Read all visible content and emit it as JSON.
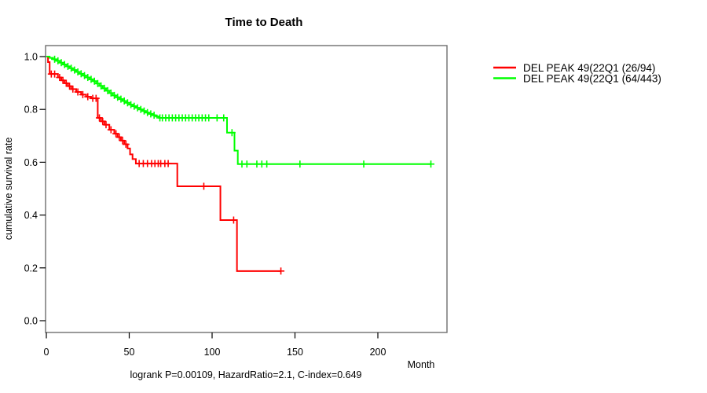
{
  "chart_data": {
    "type": "line",
    "curve_style": "kaplan-meier-step",
    "title": "Time to Death",
    "xlabel": "Month",
    "ylabel": "cumulative survival rate",
    "footnote": "logrank P=0.00109, HazardRatio=2.1, C-index=0.649",
    "x_ticks": [
      0,
      50,
      100,
      150,
      200
    ],
    "y_ticks": [
      "0.0",
      "0.2",
      "0.4",
      "0.6",
      "0.8",
      "1.0"
    ],
    "xlim": [
      0,
      242
    ],
    "ylim": [
      0.0,
      1.04
    ],
    "grid": false,
    "legend_position": "right-outside",
    "axis_color": "#000000",
    "box_color": "#6e6e6e",
    "series": [
      {
        "name": "DEL PEAK 49(22Q1 (26/94)",
        "color": "#ff0000",
        "end_month": 141.5,
        "steps": [
          [
            0,
            1.0
          ],
          [
            1,
            0.979
          ],
          [
            2,
            0.934
          ],
          [
            7,
            0.921
          ],
          [
            9,
            0.91
          ],
          [
            11,
            0.899
          ],
          [
            13,
            0.888
          ],
          [
            15,
            0.877
          ],
          [
            18,
            0.866
          ],
          [
            21,
            0.856
          ],
          [
            24,
            0.848
          ],
          [
            27,
            0.842
          ],
          [
            31,
            0.768
          ],
          [
            33,
            0.755
          ],
          [
            35,
            0.742
          ],
          [
            38,
            0.723
          ],
          [
            41,
            0.708
          ],
          [
            43,
            0.695
          ],
          [
            45,
            0.682
          ],
          [
            47,
            0.668
          ],
          [
            49,
            0.652
          ],
          [
            50.5,
            0.63
          ],
          [
            52,
            0.612
          ],
          [
            54,
            0.595
          ],
          [
            79,
            0.509
          ],
          [
            105,
            0.381
          ],
          [
            115,
            0.188
          ]
        ],
        "censor_months": [
          3,
          5,
          8,
          10,
          12,
          14,
          16,
          19,
          22,
          25,
          28,
          30,
          32,
          34,
          36,
          39,
          42,
          44,
          46,
          48,
          56,
          58.5,
          61,
          63.5,
          65.5,
          67.5,
          69,
          71.5,
          73.5,
          95,
          113,
          141.5
        ]
      },
      {
        "name": "DEL PEAK 49(22Q1 (64/443)",
        "color": "#00ff00",
        "end_month": 232,
        "steps": [
          [
            0,
            1.0
          ],
          [
            2,
            0.995
          ],
          [
            4,
            0.99
          ],
          [
            6,
            0.984
          ],
          [
            8,
            0.977
          ],
          [
            10,
            0.97
          ],
          [
            12,
            0.963
          ],
          [
            14,
            0.956
          ],
          [
            16,
            0.949
          ],
          [
            18,
            0.942
          ],
          [
            20,
            0.935
          ],
          [
            22,
            0.928
          ],
          [
            24,
            0.921
          ],
          [
            26,
            0.914
          ],
          [
            28,
            0.907
          ],
          [
            30,
            0.898
          ],
          [
            32,
            0.889
          ],
          [
            34,
            0.88
          ],
          [
            36,
            0.871
          ],
          [
            38,
            0.862
          ],
          [
            40,
            0.853
          ],
          [
            42,
            0.846
          ],
          [
            44,
            0.839
          ],
          [
            46,
            0.832
          ],
          [
            48,
            0.825
          ],
          [
            50,
            0.818
          ],
          [
            52,
            0.812
          ],
          [
            54,
            0.806
          ],
          [
            56,
            0.8
          ],
          [
            58,
            0.794
          ],
          [
            60,
            0.788
          ],
          [
            62,
            0.783
          ],
          [
            64,
            0.778
          ],
          [
            66,
            0.773
          ],
          [
            68,
            0.768
          ],
          [
            109,
            0.712
          ],
          [
            113.5,
            0.644
          ],
          [
            115.5,
            0.593
          ]
        ],
        "censor_months": [
          5,
          7,
          9,
          11,
          13,
          15,
          17,
          19,
          21,
          23,
          25,
          27,
          29,
          31,
          33,
          35,
          37,
          39,
          41,
          43,
          45,
          47,
          49,
          51,
          53,
          55,
          57,
          59,
          61,
          63,
          65,
          68.5,
          70,
          72,
          74,
          76,
          78,
          80,
          82,
          84,
          86,
          88,
          90,
          92,
          94,
          96,
          98,
          103,
          107,
          112,
          118,
          121,
          127,
          130,
          133,
          153,
          191.5,
          232
        ]
      }
    ]
  }
}
